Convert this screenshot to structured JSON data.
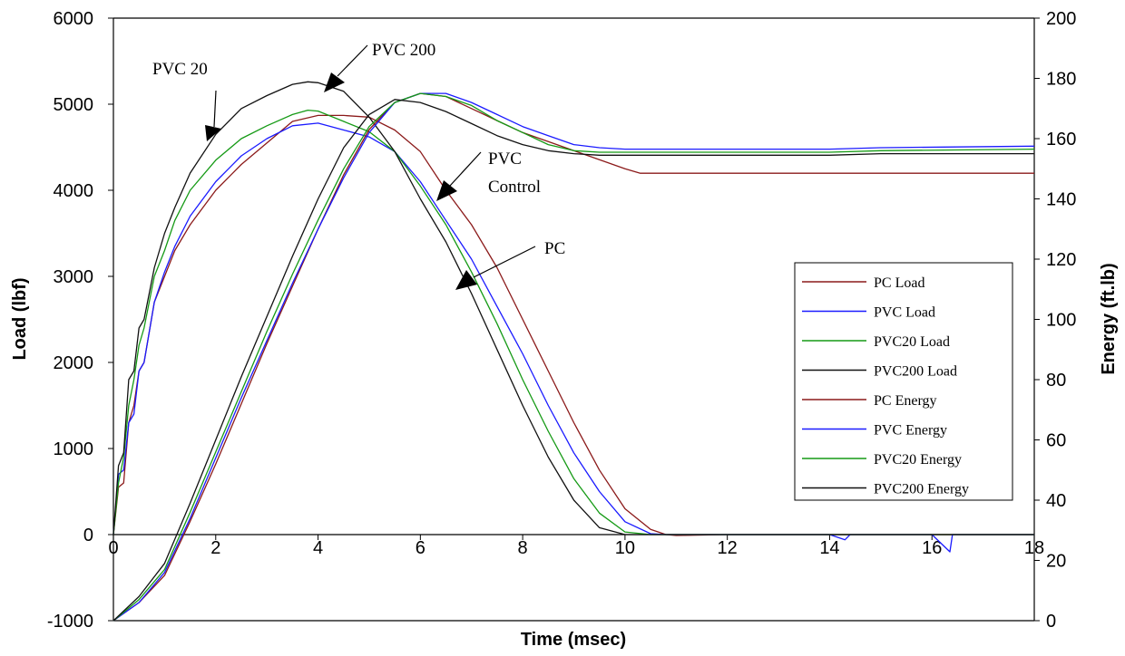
{
  "chart_data": {
    "type": "line",
    "xlabel": "Time (msec)",
    "ylabel": "Load (lbf)",
    "y2label": "Energy (ft.lb)",
    "xlim": [
      0,
      18
    ],
    "ylim": [
      -1000,
      6000
    ],
    "y2lim": [
      0,
      200
    ],
    "xticks": [
      0,
      2,
      4,
      6,
      8,
      10,
      12,
      14,
      16,
      18
    ],
    "yticks": [
      -1000,
      0,
      1000,
      2000,
      3000,
      4000,
      5000,
      6000
    ],
    "y2ticks": [
      0,
      20,
      40,
      60,
      80,
      100,
      120,
      140,
      160,
      180,
      200
    ],
    "legend_position": "right",
    "series": [
      {
        "name": "PC Load",
        "axis": "left",
        "color": "#8b1a1a",
        "x": [
          0,
          0.1,
          0.2,
          0.3,
          0.4,
          0.5,
          0.6,
          0.8,
          1.0,
          1.2,
          1.5,
          2.0,
          2.5,
          3.0,
          3.5,
          4.0,
          4.5,
          5.0,
          5.5,
          6.0,
          6.5,
          7.0,
          7.5,
          8.0,
          8.5,
          9.0,
          9.5,
          10.0,
          10.5,
          10.8,
          11,
          12,
          14,
          16,
          18
        ],
        "y": [
          0,
          550,
          600,
          1300,
          1500,
          1900,
          2000,
          2700,
          3000,
          3300,
          3600,
          4000,
          4300,
          4550,
          4800,
          4870,
          4870,
          4850,
          4700,
          4450,
          4000,
          3600,
          3100,
          2500,
          1900,
          1300,
          750,
          300,
          60,
          0,
          -10,
          0,
          0,
          0,
          0
        ]
      },
      {
        "name": "PVC Load",
        "axis": "left",
        "color": "#1a1aff",
        "x": [
          0,
          0.1,
          0.2,
          0.3,
          0.4,
          0.5,
          0.6,
          0.8,
          1.0,
          1.2,
          1.5,
          2.0,
          2.5,
          3.0,
          3.5,
          4.0,
          4.5,
          5.0,
          5.5,
          6.0,
          6.5,
          7.0,
          7.5,
          8.0,
          8.5,
          9.0,
          9.5,
          10.0,
          10.5,
          10.8,
          11,
          12,
          14,
          14.3,
          14.4,
          16,
          16.35,
          16.4,
          16.45,
          18
        ],
        "y": [
          0,
          700,
          750,
          1300,
          1400,
          1900,
          2000,
          2700,
          3050,
          3350,
          3700,
          4100,
          4400,
          4600,
          4750,
          4780,
          4700,
          4620,
          4450,
          4100,
          3650,
          3200,
          2650,
          2100,
          1500,
          950,
          500,
          150,
          10,
          0,
          0,
          0,
          0,
          -60,
          0,
          0,
          -200,
          0,
          0,
          0
        ]
      },
      {
        "name": "PVC20 Load",
        "axis": "left",
        "color": "#159a15",
        "x": [
          0,
          0.1,
          0.2,
          0.3,
          0.4,
          0.5,
          0.6,
          0.8,
          1.0,
          1.2,
          1.5,
          2.0,
          2.5,
          3.0,
          3.5,
          3.8,
          4.0,
          4.5,
          5.0,
          5.5,
          6.0,
          6.5,
          7.0,
          7.5,
          8.0,
          8.5,
          9.0,
          9.5,
          10.0,
          10.5,
          11,
          12,
          14,
          16,
          18
        ],
        "y": [
          0,
          600,
          900,
          1500,
          1800,
          2200,
          2400,
          3000,
          3300,
          3650,
          4000,
          4350,
          4600,
          4750,
          4880,
          4930,
          4920,
          4800,
          4680,
          4450,
          4050,
          3600,
          3050,
          2450,
          1800,
          1200,
          650,
          250,
          30,
          0,
          0,
          0,
          0,
          0,
          0
        ]
      },
      {
        "name": "PVC200 Load",
        "axis": "left",
        "color": "#111111",
        "x": [
          0,
          0.1,
          0.2,
          0.3,
          0.4,
          0.5,
          0.6,
          0.8,
          1.0,
          1.2,
          1.5,
          2.0,
          2.5,
          3.0,
          3.5,
          3.8,
          4.0,
          4.5,
          5.0,
          5.5,
          6.0,
          6.5,
          7.0,
          7.5,
          8.0,
          8.5,
          9.0,
          9.5,
          10.0,
          10.5,
          11,
          12,
          14,
          16,
          18
        ],
        "y": [
          0,
          800,
          950,
          1800,
          1900,
          2400,
          2500,
          3100,
          3500,
          3800,
          4200,
          4650,
          4950,
          5100,
          5230,
          5260,
          5250,
          5150,
          4850,
          4450,
          3900,
          3400,
          2800,
          2150,
          1500,
          900,
          400,
          80,
          0,
          0,
          0,
          0,
          0,
          0,
          0
        ]
      },
      {
        "name": "PC Energy",
        "axis": "right",
        "color": "#8b1a1a",
        "x": [
          0,
          0.5,
          1.0,
          1.5,
          2.0,
          2.5,
          3.0,
          3.5,
          4.0,
          4.5,
          5.0,
          5.5,
          6.0,
          6.5,
          7.0,
          7.5,
          8.0,
          8.5,
          9.0,
          9.5,
          10.0,
          10.3,
          12,
          14,
          16,
          18
        ],
        "y": [
          0,
          6,
          15,
          33,
          52,
          72,
          92,
          111,
          130,
          148,
          163,
          172,
          175,
          174,
          170,
          166,
          162,
          159,
          156,
          153,
          150,
          148.5,
          148.5,
          148.5,
          148.5,
          148.5
        ]
      },
      {
        "name": "PVC Energy",
        "axis": "right",
        "color": "#1a1aff",
        "x": [
          0,
          0.5,
          1.0,
          1.5,
          2.0,
          2.5,
          3.0,
          3.5,
          4.0,
          4.5,
          5.0,
          5.5,
          6.0,
          6.5,
          7.0,
          7.5,
          8.0,
          8.5,
          9.0,
          9.5,
          10.0,
          12,
          14,
          15,
          18
        ],
        "y": [
          0,
          6,
          16,
          34,
          54,
          74,
          93,
          112,
          130,
          147,
          162,
          172,
          175,
          175,
          172,
          168,
          164,
          161,
          158,
          157,
          156.5,
          156.5,
          156.5,
          157,
          157.5
        ]
      },
      {
        "name": "PVC20 Energy",
        "axis": "right",
        "color": "#159a15",
        "x": [
          0,
          0.5,
          1.0,
          1.5,
          2.0,
          2.5,
          3.0,
          3.5,
          4.0,
          4.5,
          5.0,
          5.5,
          6.0,
          6.5,
          7.0,
          7.5,
          8.0,
          8.5,
          9.0,
          9.5,
          10.0,
          12,
          14,
          15,
          18
        ],
        "y": [
          0,
          7,
          17,
          36,
          56,
          76,
          96,
          115,
          133,
          150,
          164,
          172,
          175,
          174,
          171,
          166,
          162,
          158,
          156,
          155.5,
          155.5,
          155.5,
          155.5,
          156,
          156.5
        ]
      },
      {
        "name": "PVC200 Energy",
        "axis": "right",
        "color": "#111111",
        "x": [
          0,
          0.5,
          1.0,
          1.5,
          2.0,
          2.5,
          3.0,
          3.5,
          4.0,
          4.5,
          5.0,
          5.5,
          6.0,
          6.5,
          7.0,
          7.5,
          8.0,
          8.5,
          9.0,
          9.5,
          10.0,
          12,
          14,
          15,
          18
        ],
        "y": [
          0,
          8,
          19,
          39,
          60,
          81,
          101,
          121,
          140,
          157,
          168,
          173,
          172,
          169,
          165,
          161,
          158,
          156,
          155,
          154.5,
          154.5,
          154.5,
          154.5,
          155,
          155
        ]
      }
    ],
    "annotations": [
      {
        "lines": [
          "PVC 20"
        ]
      },
      {
        "lines": [
          "PVC 200"
        ]
      },
      {
        "lines": [
          "PVC",
          "Control"
        ]
      },
      {
        "lines": [
          "PC"
        ]
      }
    ]
  }
}
